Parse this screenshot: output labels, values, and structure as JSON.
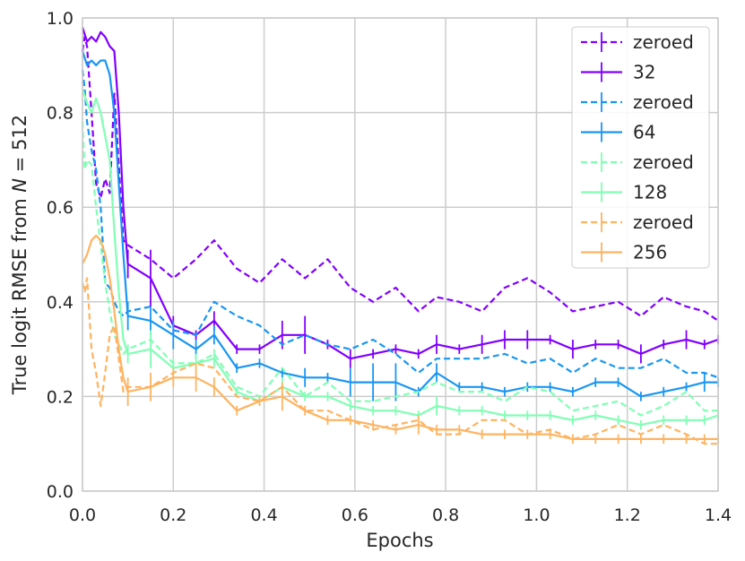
{
  "chart_data": {
    "type": "line",
    "title": "",
    "xlabel": "Epochs",
    "ylabel_prefix": "True logit RMSE from ",
    "ylabel_var": "N",
    "ylabel_suffix": " = 512",
    "xlim": [
      0,
      1.4
    ],
    "ylim": [
      0,
      1.0
    ],
    "xticks": [
      "0.0",
      "0.2",
      "0.4",
      "0.6",
      "0.8",
      "1.0",
      "1.2",
      "1.4"
    ],
    "yticks": [
      "0.0",
      "0.2",
      "0.4",
      "0.6",
      "0.8",
      "1.0"
    ],
    "grid": true,
    "legend_position": "top-right",
    "series": [
      {
        "name": "zeroed",
        "color": "#8000ff",
        "dashed": true,
        "x": [
          0,
          0.005,
          0.01,
          0.02,
          0.03,
          0.04,
          0.05,
          0.06,
          0.07,
          0.08,
          0.09,
          0.1,
          0.15,
          0.2,
          0.25,
          0.29,
          0.34,
          0.39,
          0.44,
          0.49,
          0.54,
          0.59,
          0.64,
          0.69,
          0.74,
          0.78,
          0.83,
          0.88,
          0.93,
          0.98,
          1.03,
          1.08,
          1.13,
          1.18,
          1.23,
          1.28,
          1.33,
          1.37,
          1.4
        ],
        "y": [
          0.93,
          0.96,
          0.94,
          0.8,
          0.65,
          0.62,
          0.66,
          0.63,
          0.84,
          0.69,
          0.53,
          0.52,
          0.49,
          0.45,
          0.49,
          0.53,
          0.47,
          0.44,
          0.49,
          0.45,
          0.49,
          0.43,
          0.4,
          0.43,
          0.38,
          0.41,
          0.4,
          0.38,
          0.43,
          0.45,
          0.42,
          0.38,
          0.39,
          0.4,
          0.37,
          0.41,
          0.39,
          0.38,
          0.36
        ],
        "err": []
      },
      {
        "name": "32",
        "color": "#8000ff",
        "dashed": false,
        "x": [
          0,
          0.01,
          0.02,
          0.03,
          0.04,
          0.05,
          0.06,
          0.07,
          0.08,
          0.09,
          0.1,
          0.15,
          0.2,
          0.25,
          0.29,
          0.34,
          0.39,
          0.44,
          0.49,
          0.54,
          0.59,
          0.64,
          0.69,
          0.74,
          0.78,
          0.83,
          0.88,
          0.93,
          0.98,
          1.03,
          1.08,
          1.13,
          1.18,
          1.23,
          1.28,
          1.33,
          1.37,
          1.4
        ],
        "y": [
          0.98,
          0.95,
          0.96,
          0.95,
          0.97,
          0.96,
          0.94,
          0.93,
          0.8,
          0.6,
          0.48,
          0.45,
          0.35,
          0.33,
          0.36,
          0.3,
          0.3,
          0.33,
          0.33,
          0.31,
          0.28,
          0.29,
          0.3,
          0.29,
          0.31,
          0.3,
          0.31,
          0.32,
          0.32,
          0.32,
          0.3,
          0.31,
          0.31,
          0.29,
          0.31,
          0.32,
          0.31,
          0.32
        ],
        "err": [
          0,
          0,
          0,
          0,
          0,
          0,
          0,
          0,
          0,
          0,
          0.03,
          0.06,
          0.02,
          0.01,
          0.02,
          0.01,
          0.01,
          0.03,
          0.04,
          0.01,
          0.02,
          0.01,
          0.01,
          0.01,
          0.02,
          0.01,
          0.02,
          0.02,
          0.02,
          0.01,
          0.02,
          0.01,
          0.01,
          0.02,
          0.01,
          0.02,
          0.01,
          0.01
        ]
      },
      {
        "name": "zeroed",
        "color": "#1996f3",
        "dashed": true,
        "x": [
          0,
          0.005,
          0.01,
          0.02,
          0.03,
          0.04,
          0.05,
          0.06,
          0.07,
          0.08,
          0.09,
          0.1,
          0.15,
          0.2,
          0.25,
          0.29,
          0.34,
          0.39,
          0.44,
          0.49,
          0.54,
          0.59,
          0.64,
          0.69,
          0.74,
          0.78,
          0.83,
          0.88,
          0.93,
          0.98,
          1.03,
          1.08,
          1.13,
          1.18,
          1.23,
          1.28,
          1.33,
          1.37,
          1.4
        ],
        "y": [
          0.89,
          0.85,
          0.78,
          0.72,
          0.68,
          0.6,
          0.44,
          0.43,
          0.4,
          0.38,
          0.37,
          0.38,
          0.39,
          0.34,
          0.33,
          0.4,
          0.37,
          0.35,
          0.31,
          0.33,
          0.31,
          0.3,
          0.32,
          0.29,
          0.25,
          0.28,
          0.28,
          0.28,
          0.29,
          0.27,
          0.28,
          0.25,
          0.28,
          0.26,
          0.26,
          0.28,
          0.25,
          0.25,
          0.24
        ],
        "err": []
      },
      {
        "name": "64",
        "color": "#1996f3",
        "dashed": false,
        "x": [
          0,
          0.01,
          0.02,
          0.03,
          0.04,
          0.05,
          0.06,
          0.07,
          0.08,
          0.09,
          0.1,
          0.15,
          0.2,
          0.25,
          0.29,
          0.34,
          0.39,
          0.44,
          0.49,
          0.54,
          0.59,
          0.64,
          0.69,
          0.74,
          0.78,
          0.83,
          0.88,
          0.93,
          0.98,
          1.03,
          1.08,
          1.13,
          1.18,
          1.23,
          1.28,
          1.33,
          1.37,
          1.4
        ],
        "y": [
          0.93,
          0.9,
          0.91,
          0.9,
          0.91,
          0.91,
          0.88,
          0.8,
          0.65,
          0.5,
          0.37,
          0.36,
          0.33,
          0.3,
          0.33,
          0.26,
          0.27,
          0.25,
          0.24,
          0.24,
          0.23,
          0.23,
          0.23,
          0.21,
          0.25,
          0.22,
          0.22,
          0.21,
          0.22,
          0.22,
          0.21,
          0.23,
          0.23,
          0.2,
          0.21,
          0.22,
          0.23,
          0.23
        ],
        "err": [
          0,
          0,
          0,
          0,
          0,
          0,
          0,
          0,
          0,
          0,
          0.03,
          0.03,
          0.03,
          0.02,
          0.02,
          0.01,
          0.01,
          0.01,
          0.02,
          0.01,
          0.03,
          0.04,
          0.04,
          0.01,
          0.02,
          0.01,
          0.01,
          0.01,
          0.01,
          0.01,
          0.01,
          0.01,
          0.01,
          0.01,
          0.01,
          0.01,
          0.02,
          0.01
        ]
      },
      {
        "name": "zeroed",
        "color": "#80ffb4",
        "dashed": true,
        "x": [
          0,
          0.005,
          0.01,
          0.02,
          0.03,
          0.04,
          0.05,
          0.06,
          0.07,
          0.08,
          0.09,
          0.1,
          0.15,
          0.2,
          0.25,
          0.29,
          0.34,
          0.39,
          0.44,
          0.49,
          0.54,
          0.59,
          0.64,
          0.69,
          0.74,
          0.78,
          0.83,
          0.88,
          0.93,
          0.98,
          1.03,
          1.08,
          1.13,
          1.18,
          1.23,
          1.28,
          1.33,
          1.37,
          1.4
        ],
        "y": [
          0.78,
          0.68,
          0.7,
          0.69,
          0.6,
          0.52,
          0.44,
          0.38,
          0.33,
          0.31,
          0.29,
          0.3,
          0.32,
          0.27,
          0.27,
          0.29,
          0.22,
          0.2,
          0.26,
          0.2,
          0.23,
          0.19,
          0.19,
          0.2,
          0.21,
          0.23,
          0.21,
          0.21,
          0.19,
          0.22,
          0.21,
          0.17,
          0.18,
          0.19,
          0.16,
          0.18,
          0.21,
          0.17,
          0.17
        ],
        "err": []
      },
      {
        "name": "128",
        "color": "#80ffb4",
        "dashed": false,
        "x": [
          0,
          0.01,
          0.02,
          0.03,
          0.04,
          0.05,
          0.06,
          0.07,
          0.08,
          0.09,
          0.1,
          0.15,
          0.2,
          0.25,
          0.29,
          0.34,
          0.39,
          0.44,
          0.49,
          0.54,
          0.59,
          0.64,
          0.69,
          0.74,
          0.78,
          0.83,
          0.88,
          0.93,
          0.98,
          1.03,
          1.08,
          1.13,
          1.18,
          1.23,
          1.28,
          1.33,
          1.37,
          1.4
        ],
        "y": [
          0.85,
          0.82,
          0.8,
          0.83,
          0.8,
          0.75,
          0.7,
          0.55,
          0.42,
          0.32,
          0.29,
          0.3,
          0.26,
          0.27,
          0.28,
          0.21,
          0.19,
          0.22,
          0.2,
          0.2,
          0.18,
          0.17,
          0.17,
          0.16,
          0.18,
          0.17,
          0.17,
          0.16,
          0.16,
          0.16,
          0.15,
          0.16,
          0.15,
          0.14,
          0.15,
          0.15,
          0.15,
          0.16
        ],
        "err": [
          0,
          0,
          0,
          0,
          0,
          0,
          0,
          0,
          0,
          0,
          0.02,
          0.04,
          0.02,
          0.02,
          0.02,
          0.01,
          0.01,
          0.02,
          0.01,
          0.01,
          0.01,
          0.01,
          0.01,
          0.01,
          0.02,
          0.01,
          0.01,
          0.01,
          0.01,
          0.01,
          0.01,
          0.01,
          0.01,
          0.01,
          0.01,
          0.01,
          0.01,
          0.01
        ]
      },
      {
        "name": "zeroed",
        "color": "#ffb360",
        "dashed": true,
        "x": [
          0,
          0.005,
          0.01,
          0.02,
          0.03,
          0.04,
          0.05,
          0.06,
          0.07,
          0.08,
          0.09,
          0.1,
          0.15,
          0.2,
          0.25,
          0.29,
          0.34,
          0.39,
          0.44,
          0.49,
          0.54,
          0.59,
          0.64,
          0.69,
          0.74,
          0.78,
          0.83,
          0.88,
          0.93,
          0.98,
          1.03,
          1.08,
          1.13,
          1.18,
          1.23,
          1.28,
          1.33,
          1.37,
          1.4
        ],
        "y": [
          0.44,
          0.42,
          0.45,
          0.3,
          0.25,
          0.18,
          0.25,
          0.33,
          0.35,
          0.28,
          0.21,
          0.22,
          0.22,
          0.25,
          0.27,
          0.26,
          0.2,
          0.19,
          0.22,
          0.17,
          0.17,
          0.15,
          0.13,
          0.14,
          0.15,
          0.12,
          0.12,
          0.15,
          0.15,
          0.12,
          0.13,
          0.11,
          0.12,
          0.14,
          0.12,
          0.14,
          0.12,
          0.1,
          0.1
        ],
        "err": []
      },
      {
        "name": "256",
        "color": "#ffb360",
        "dashed": false,
        "x": [
          0,
          0.01,
          0.02,
          0.03,
          0.04,
          0.05,
          0.06,
          0.07,
          0.08,
          0.09,
          0.1,
          0.15,
          0.2,
          0.25,
          0.29,
          0.34,
          0.39,
          0.44,
          0.49,
          0.54,
          0.59,
          0.64,
          0.69,
          0.74,
          0.78,
          0.83,
          0.88,
          0.93,
          0.98,
          1.03,
          1.08,
          1.13,
          1.18,
          1.23,
          1.28,
          1.33,
          1.37,
          1.4
        ],
        "y": [
          0.48,
          0.5,
          0.53,
          0.54,
          0.53,
          0.5,
          0.45,
          0.38,
          0.3,
          0.24,
          0.21,
          0.22,
          0.24,
          0.24,
          0.22,
          0.17,
          0.19,
          0.2,
          0.17,
          0.15,
          0.15,
          0.14,
          0.13,
          0.14,
          0.13,
          0.13,
          0.12,
          0.12,
          0.12,
          0.12,
          0.11,
          0.11,
          0.11,
          0.11,
          0.11,
          0.11,
          0.11,
          0.11
        ],
        "err": [
          0,
          0,
          0,
          0,
          0,
          0,
          0,
          0,
          0,
          0,
          0.03,
          0.03,
          0.02,
          0.03,
          0.02,
          0.01,
          0.01,
          0.03,
          0.01,
          0.01,
          0.01,
          0.01,
          0.01,
          0.02,
          0.01,
          0.01,
          0.01,
          0.01,
          0.01,
          0.01,
          0.01,
          0.01,
          0.01,
          0.01,
          0.01,
          0.01,
          0.01,
          0.01
        ]
      }
    ]
  }
}
